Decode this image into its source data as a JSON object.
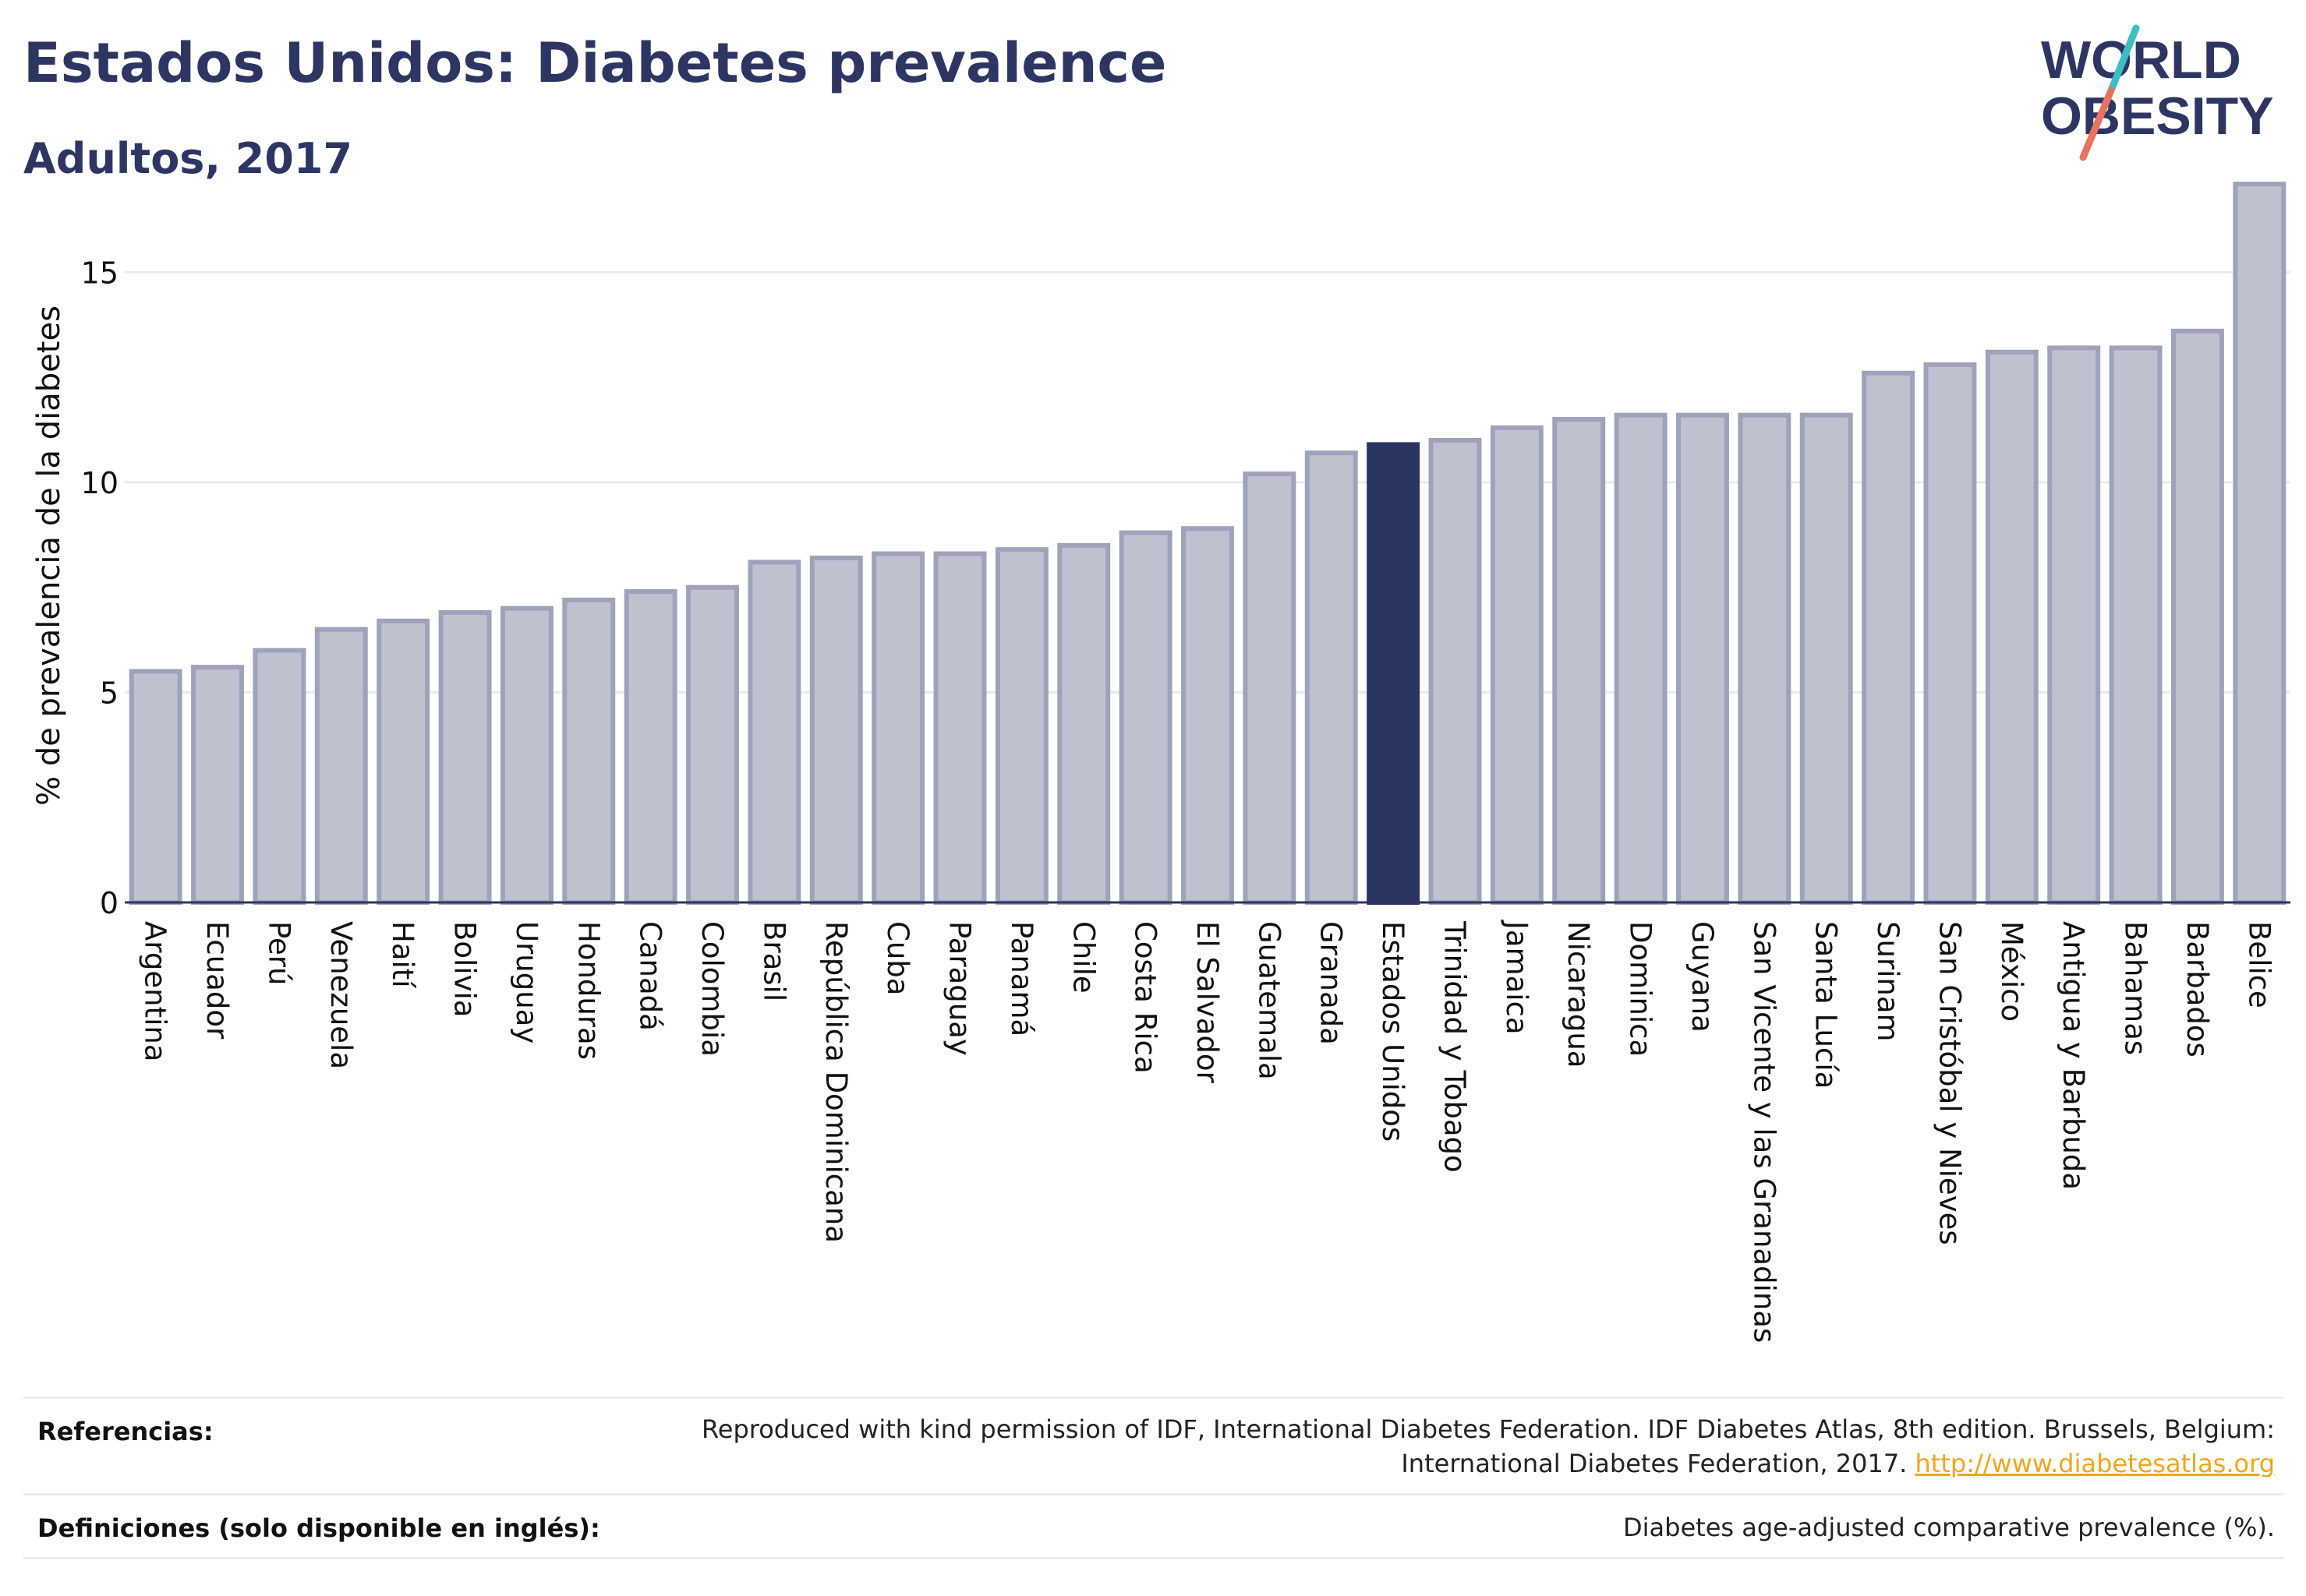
{
  "header": {
    "title": "Estados Unidos: Diabetes prevalence",
    "subtitle": "Adultos, 2017"
  },
  "logo": {
    "line1": "WORLD",
    "line2": "OBESITY"
  },
  "colors": {
    "bar": "#bfc1cf",
    "bar_border": "#9ea2ba",
    "highlight": "#2b3562",
    "text": "#2d3663",
    "grid": "#e9e9ee",
    "logo_slash_teal": "#3bbfc4",
    "logo_slash_coral": "#e8735f",
    "link": "#f0a61c"
  },
  "chart_data": {
    "type": "bar",
    "title": "Estados Unidos: Diabetes prevalence",
    "subtitle": "Adultos, 2017",
    "xlabel": "",
    "ylabel": "% de prevalencia de la diabetes",
    "ylim": [
      0,
      17.4
    ],
    "yticks": [
      0,
      5,
      10,
      15
    ],
    "grid": true,
    "highlight": "Estados Unidos",
    "categories": [
      "Argentina",
      "Ecuador",
      "Perú",
      "Venezuela",
      "Haití",
      "Bolivia",
      "Uruguay",
      "Honduras",
      "Canadá",
      "Colombia",
      "Brasil",
      "República Dominicana",
      "Cuba",
      "Paraguay",
      "Panamá",
      "Chile",
      "Costa Rica",
      "El Salvador",
      "Guatemala",
      "Granada",
      "Estados Unidos",
      "Trinidad y Tobago",
      "Jamaica",
      "Nicaragua",
      "Dominica",
      "Guyana",
      "San Vicente y las Granadinas",
      "Santa Lucía",
      "Surinam",
      "San Cristóbal y Nieves",
      "México",
      "Antigua y Barbuda",
      "Bahamas",
      "Barbados",
      "Belice"
    ],
    "values": [
      5.5,
      5.6,
      6.0,
      6.5,
      6.7,
      6.9,
      7.0,
      7.2,
      7.4,
      7.5,
      8.1,
      8.2,
      8.3,
      8.3,
      8.4,
      8.5,
      8.8,
      8.9,
      10.2,
      10.7,
      10.9,
      11.0,
      11.3,
      11.5,
      11.6,
      11.6,
      11.6,
      11.6,
      12.6,
      12.8,
      13.1,
      13.2,
      13.2,
      13.6,
      17.1
    ]
  },
  "footer": {
    "references_label": "Referencias:",
    "references_line1": "Reproduced with kind permission of IDF, International Diabetes Federation. IDF Diabetes Atlas, 8th edition. Brussels, Belgium:",
    "references_line2": "International Diabetes Federation, 2017.",
    "references_link": "http://www.diabetesatlas.org",
    "definitions_label": "Definiciones (solo disponible en inglés):",
    "definitions_text": "Diabetes age-adjusted comparative prevalence (%)."
  }
}
